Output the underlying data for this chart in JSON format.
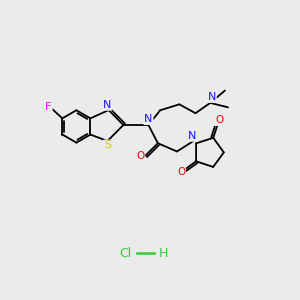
{
  "bg_color": "#ebebeb",
  "atom_colors": {
    "C": "#000000",
    "N": "#1414ff",
    "O": "#ff0000",
    "S": "#cccc00",
    "F": "#ff00ff",
    "Cl": "#33cc33",
    "H": "#000000"
  },
  "bond_color": "#000000",
  "hcl_color": "#33cc33"
}
